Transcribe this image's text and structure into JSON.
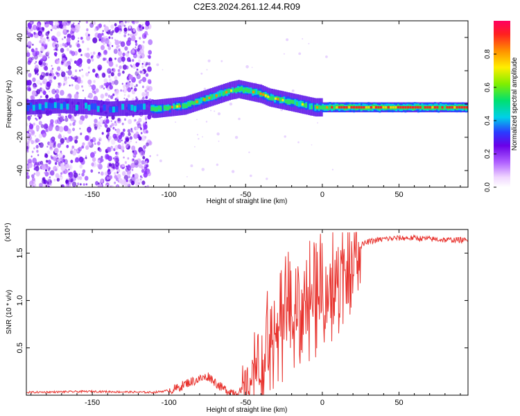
{
  "title": "C2E3.2024.261.12.44.R09",
  "chart_data": [
    {
      "type": "heatmap",
      "xlabel": "Height of straight line (km)",
      "ylabel": "Frequency (Hz)",
      "xlim": [
        -193,
        95
      ],
      "ylim": [
        -50,
        50
      ],
      "xticks": [
        -150,
        -100,
        -50,
        0,
        50
      ],
      "yticks": [
        -40,
        -20,
        0,
        20,
        40
      ],
      "colorbar_label": "Normalized spectral amplitude",
      "colorbar_ticks": [
        0.0,
        0.2,
        0.4,
        0.6,
        0.8
      ],
      "colorbar_range": [
        0,
        1
      ],
      "ridge": {
        "x": [
          -193,
          -170,
          -150,
          -140,
          -115,
          -110,
          -100,
          -90,
          -80,
          -70,
          -60,
          -55,
          -50,
          -45,
          -40,
          -35,
          -30,
          -25,
          -20,
          -15,
          -10,
          -5,
          0,
          20,
          50,
          95
        ],
        "freq": [
          -2,
          -1,
          -2,
          -3,
          -2,
          -3,
          -2,
          -1,
          2,
          5,
          8,
          9,
          8,
          7,
          6,
          4,
          3,
          2,
          1,
          0,
          -1,
          -2,
          -2,
          -2,
          -2,
          -2
        ]
      },
      "noise_region_x": [
        -193,
        -112
      ]
    },
    {
      "type": "line",
      "xlabel": "Height of straight line (km)",
      "ylabel": "SNR (10 * v/v)",
      "y_multiplier": "(x10⁴)",
      "xlim": [
        -193,
        95
      ],
      "ylim": [
        0,
        1.75
      ],
      "xticks": [
        -150,
        -100,
        -50,
        0,
        50
      ],
      "yticks": [
        0.5,
        1.0,
        1.5
      ],
      "ytick_labels": [
        "0.5",
        "1.0",
        "1.5"
      ],
      "series": [
        {
          "name": "SNR",
          "color": "#e8322d",
          "x": [
            -193,
            -150,
            -110,
            -100,
            -95,
            -88,
            -82,
            -78,
            -74,
            -70,
            -65,
            -60,
            -55,
            -52,
            -50,
            -45,
            -40,
            -35,
            -30,
            -25,
            -20,
            -15,
            -10,
            -5,
            0,
            5,
            10,
            15,
            20,
            25,
            30,
            40,
            50,
            60,
            70,
            80,
            90,
            95
          ],
          "y": [
            0.03,
            0.04,
            0.03,
            0.05,
            0.07,
            0.13,
            0.16,
            0.18,
            0.2,
            0.14,
            0.07,
            0.04,
            0.03,
            0.04,
            0.05,
            0.2,
            0.4,
            0.6,
            0.7,
            0.78,
            0.85,
            0.9,
            0.95,
            1.0,
            1.05,
            1.15,
            1.3,
            1.4,
            1.5,
            1.58,
            1.62,
            1.65,
            1.66,
            1.66,
            1.65,
            1.64,
            1.64,
            1.63
          ]
        }
      ]
    }
  ]
}
